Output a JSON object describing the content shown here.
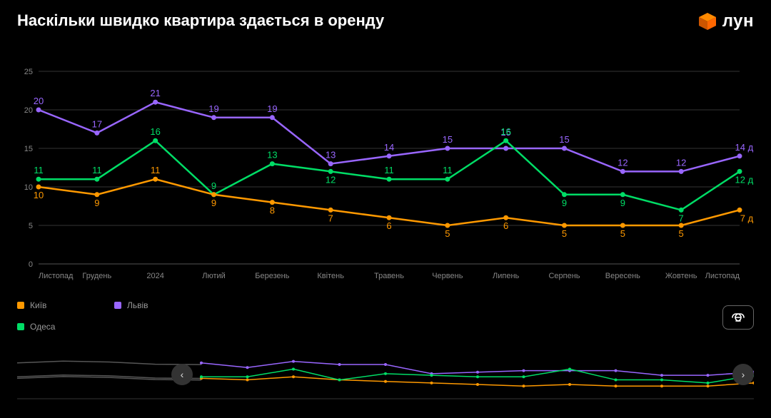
{
  "header": {
    "title": "Наскільки швидко квартира здається в оренду",
    "logo_text": "лун"
  },
  "chart": {
    "type": "line",
    "background_color": "#000000",
    "grid_color": "#333333",
    "baseline_color": "#555555",
    "axis_label_color": "#888888",
    "ylim": [
      0,
      25
    ],
    "ytick_step": 5,
    "yticks": [
      0,
      5,
      10,
      15,
      20,
      25
    ],
    "categories": [
      "Листопад",
      "Грудень",
      "2024",
      "Лютий",
      "Березень",
      "Квітень",
      "Травень",
      "Червень",
      "Липень",
      "Серпень",
      "Вересень",
      "Жовтень",
      "Листопад"
    ],
    "label_fontsize": 11,
    "data_label_fontsize": 13,
    "line_width": 2.5,
    "marker_radius": 3.5,
    "last_label_suffix": " дн.",
    "series": [
      {
        "name": "Київ",
        "color": "#ff9900",
        "values": [
          10,
          9,
          11,
          9,
          8,
          7,
          6,
          5,
          6,
          5,
          5,
          5,
          7
        ],
        "label_offset_y": [
          16,
          16,
          -8,
          16,
          16,
          16,
          16,
          16,
          16,
          16,
          16,
          16,
          16
        ]
      },
      {
        "name": "Львів",
        "color": "#9966ff",
        "values": [
          20,
          17,
          21,
          19,
          19,
          13,
          14,
          15,
          15,
          15,
          12,
          12,
          14
        ],
        "label_offset_y": [
          -8,
          -8,
          -8,
          -8,
          -8,
          -8,
          -8,
          -8,
          -18,
          -8,
          -8,
          -8,
          -8
        ]
      },
      {
        "name": "Одеса",
        "color": "#00dd66",
        "values": [
          11,
          11,
          16,
          9,
          13,
          12,
          11,
          11,
          16,
          9,
          9,
          7,
          12
        ],
        "label_offset_y": [
          -8,
          -8,
          -8,
          -8,
          -8,
          16,
          -8,
          -8,
          -8,
          16,
          16,
          16,
          16
        ]
      }
    ]
  },
  "legend": {
    "items": [
      {
        "label": "Київ",
        "color": "#ff9900"
      },
      {
        "label": "Львів",
        "color": "#9966ff"
      },
      {
        "label": "Одеса",
        "color": "#00dd66"
      }
    ]
  },
  "link_button": {
    "title": "copy-link"
  },
  "navigator": {
    "height": 70,
    "visible_fraction_start": 0.22,
    "series_colors_visible": [
      "#ff9900",
      "#9966ff",
      "#00dd66"
    ],
    "series_color_hidden": "#555555",
    "prev_label": "‹",
    "next_label": "›"
  }
}
